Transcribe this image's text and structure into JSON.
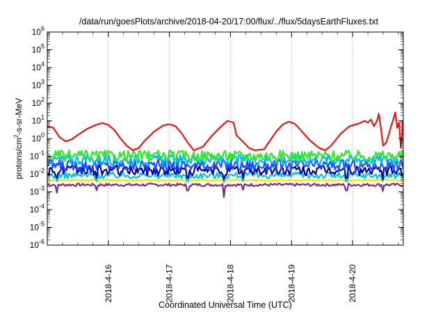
{
  "chart_data": {
    "type": "line",
    "title": "/data/run/goesPlots/archive/2018-04-20/17:00/flux/../flux/5daysEarthFluxes.txt",
    "xlabel": "Coordinated Universal Time (UTC)",
    "ylabel": "protons/cm²-s-sr-MeV",
    "ylabel_parts": [
      "protons/cm",
      "2",
      "-s-sr-MeV"
    ],
    "yscale": "log",
    "ylim": [
      1e-06,
      1000000.0
    ],
    "y_ticks": [
      {
        "base": "10",
        "exp": "-6",
        "value": -6
      },
      {
        "base": "10",
        "exp": "-5",
        "value": -5
      },
      {
        "base": "10",
        "exp": "-4",
        "value": -4
      },
      {
        "base": "10",
        "exp": "-3",
        "value": -3
      },
      {
        "base": "10",
        "exp": "-2",
        "value": -2
      },
      {
        "base": "10",
        "exp": "-1",
        "value": -1
      },
      {
        "base": "10",
        "exp": "0",
        "value": 0
      },
      {
        "base": "10",
        "exp": "1",
        "value": 1
      },
      {
        "base": "10",
        "exp": "2",
        "value": 2
      },
      {
        "base": "10",
        "exp": "3",
        "value": 3
      },
      {
        "base": "10",
        "exp": "4",
        "value": 4
      },
      {
        "base": "10",
        "exp": "5",
        "value": 5
      },
      {
        "base": "10",
        "exp": "6",
        "value": 6
      }
    ],
    "x_range_days": [
      0,
      5.83
    ],
    "x_ticks": [
      {
        "label": "2018-4-16",
        "day": 1
      },
      {
        "label": "2018-4-17",
        "day": 2
      },
      {
        "label": "2018-4-18",
        "day": 3
      },
      {
        "label": "2018-4-19",
        "day": 4
      },
      {
        "label": "2018-4-20",
        "day": 5
      }
    ],
    "grid": true,
    "legend": "none",
    "series": [
      {
        "color": "#7f2a7f",
        "base": 0.0025,
        "noise": 0.08,
        "type": "flat",
        "dips": [
          [
            0.15,
            0.0009
          ],
          [
            0.8,
            0.0012
          ],
          [
            2.3,
            0.0012
          ],
          [
            2.9,
            0.0005
          ],
          [
            3.2,
            0.0013
          ],
          [
            4.9,
            0.0012
          ],
          [
            5.5,
            0.0011
          ]
        ]
      },
      {
        "color": "#ffe000",
        "base": 0.0045,
        "noise": 0.05,
        "type": "flat",
        "dips": []
      },
      {
        "color": "#00c8c8",
        "base": 0.0085,
        "noise": 0.18,
        "type": "flat",
        "dips": [
          [
            0.15,
            0.004
          ],
          [
            0.8,
            0.004
          ],
          [
            2.3,
            0.004
          ],
          [
            2.9,
            0.0035
          ],
          [
            3.2,
            0.004
          ],
          [
            4.9,
            0.004
          ],
          [
            5.5,
            0.004
          ]
        ]
      },
      {
        "color": "#0000a0",
        "base": 0.016,
        "noise": 0.28,
        "type": "flat",
        "dips": [
          [
            0.15,
            0.006
          ],
          [
            0.8,
            0.006
          ],
          [
            2.3,
            0.006
          ],
          [
            2.9,
            0.005
          ],
          [
            3.2,
            0.006
          ],
          [
            4.9,
            0.006
          ],
          [
            5.5,
            0.005
          ]
        ]
      },
      {
        "color": "#1a4dff",
        "base": 0.032,
        "noise": 0.32,
        "type": "flat",
        "dips": []
      },
      {
        "color": "#00b4ff",
        "base": 0.065,
        "noise": 0.28,
        "type": "flat",
        "dips": []
      },
      {
        "color": "#22ee22",
        "base": 0.11,
        "noise": 0.3,
        "type": "flat",
        "dips": []
      },
      {
        "color": "#ee1111",
        "type": "points",
        "points": [
          [
            0.0,
            5
          ],
          [
            0.1,
            4
          ],
          [
            0.2,
            1.2
          ],
          [
            0.3,
            0.7
          ],
          [
            0.4,
            0.9
          ],
          [
            0.5,
            1.6
          ],
          [
            0.65,
            3.5
          ],
          [
            0.8,
            6
          ],
          [
            0.9,
            7.5
          ],
          [
            1.0,
            6
          ],
          [
            1.1,
            3
          ],
          [
            1.2,
            1
          ],
          [
            1.3,
            0.4
          ],
          [
            1.4,
            0.22
          ],
          [
            1.5,
            0.3
          ],
          [
            1.6,
            0.8
          ],
          [
            1.75,
            2.5
          ],
          [
            1.9,
            5.5
          ],
          [
            2.0,
            6.5
          ],
          [
            2.1,
            5
          ],
          [
            2.2,
            2
          ],
          [
            2.3,
            0.6
          ],
          [
            2.4,
            0.22
          ],
          [
            2.55,
            0.35
          ],
          [
            2.7,
            1.5
          ],
          [
            2.85,
            5
          ],
          [
            2.95,
            10
          ],
          [
            3.05,
            8
          ],
          [
            3.1,
            1.5
          ],
          [
            3.2,
            0.7
          ],
          [
            3.3,
            0.3
          ],
          [
            3.4,
            0.22
          ],
          [
            3.55,
            0.25
          ],
          [
            3.65,
            0.8
          ],
          [
            3.75,
            2.5
          ],
          [
            3.85,
            6
          ],
          [
            3.95,
            9
          ],
          [
            4.05,
            7
          ],
          [
            4.15,
            3
          ],
          [
            4.3,
            0.8
          ],
          [
            4.45,
            0.3
          ],
          [
            4.55,
            0.22
          ],
          [
            4.65,
            0.4
          ],
          [
            4.8,
            1.8
          ],
          [
            4.95,
            5
          ],
          [
            5.1,
            7
          ],
          [
            5.2,
            10
          ],
          [
            5.25,
            8
          ],
          [
            5.3,
            12
          ],
          [
            5.35,
            5
          ],
          [
            5.4,
            10
          ],
          [
            5.43,
            25
          ],
          [
            5.46,
            5
          ],
          [
            5.5,
            0.4
          ],
          [
            5.55,
            0.6
          ],
          [
            5.6,
            2
          ],
          [
            5.63,
            5
          ],
          [
            5.66,
            10
          ],
          [
            5.7,
            30
          ],
          [
            5.73,
            4
          ],
          [
            5.76,
            8
          ],
          [
            5.79,
            0.3
          ],
          [
            5.83,
            10
          ],
          [
            5.88,
            7
          ],
          [
            5.93,
            12
          ],
          [
            5.98,
            9
          ],
          [
            6.03,
            11
          ]
        ]
      }
    ]
  }
}
